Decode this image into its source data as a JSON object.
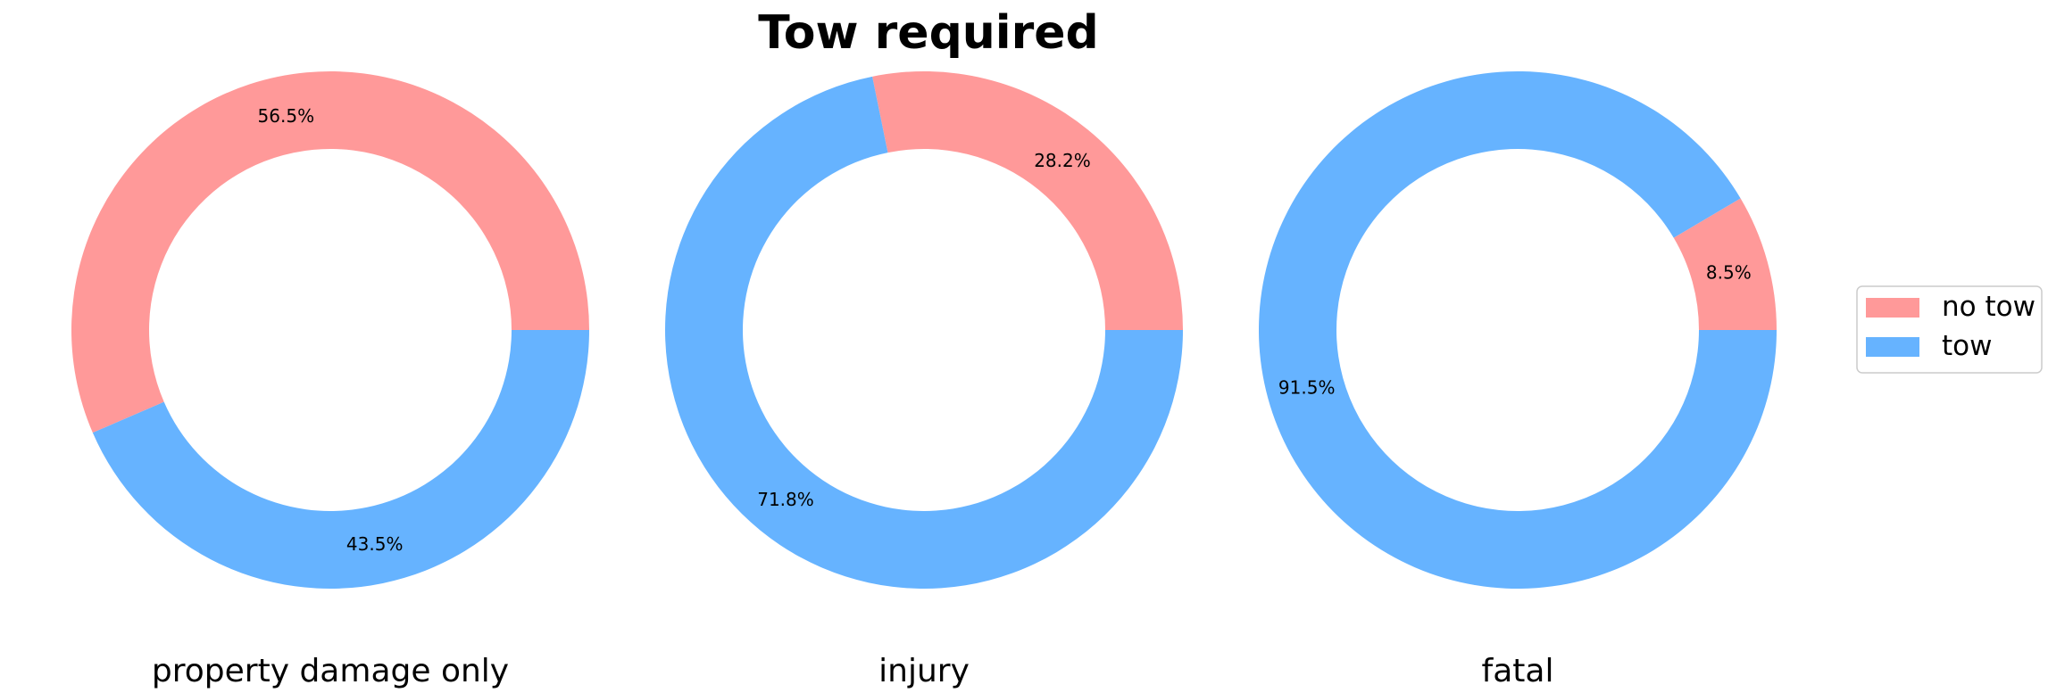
{
  "chart_data": {
    "type": "pie",
    "title": "Tow required",
    "categories": [
      "no tow",
      "tow"
    ],
    "colors": {
      "no tow": "#ff9999",
      "tow": "#66b3ff"
    },
    "legend": {
      "position": "right",
      "entries": [
        "no tow",
        "tow"
      ]
    },
    "charts": [
      {
        "label": "property damage only",
        "values": [
          56.5,
          43.5
        ],
        "labels": [
          "56.5%",
          "43.5%"
        ]
      },
      {
        "label": "injury",
        "values": [
          28.2,
          71.8
        ],
        "labels": [
          "28.2%",
          "71.8%"
        ]
      },
      {
        "label": "fatal",
        "values": [
          8.5,
          91.5
        ],
        "labels": [
          "8.5%",
          "91.5%"
        ]
      }
    ]
  }
}
